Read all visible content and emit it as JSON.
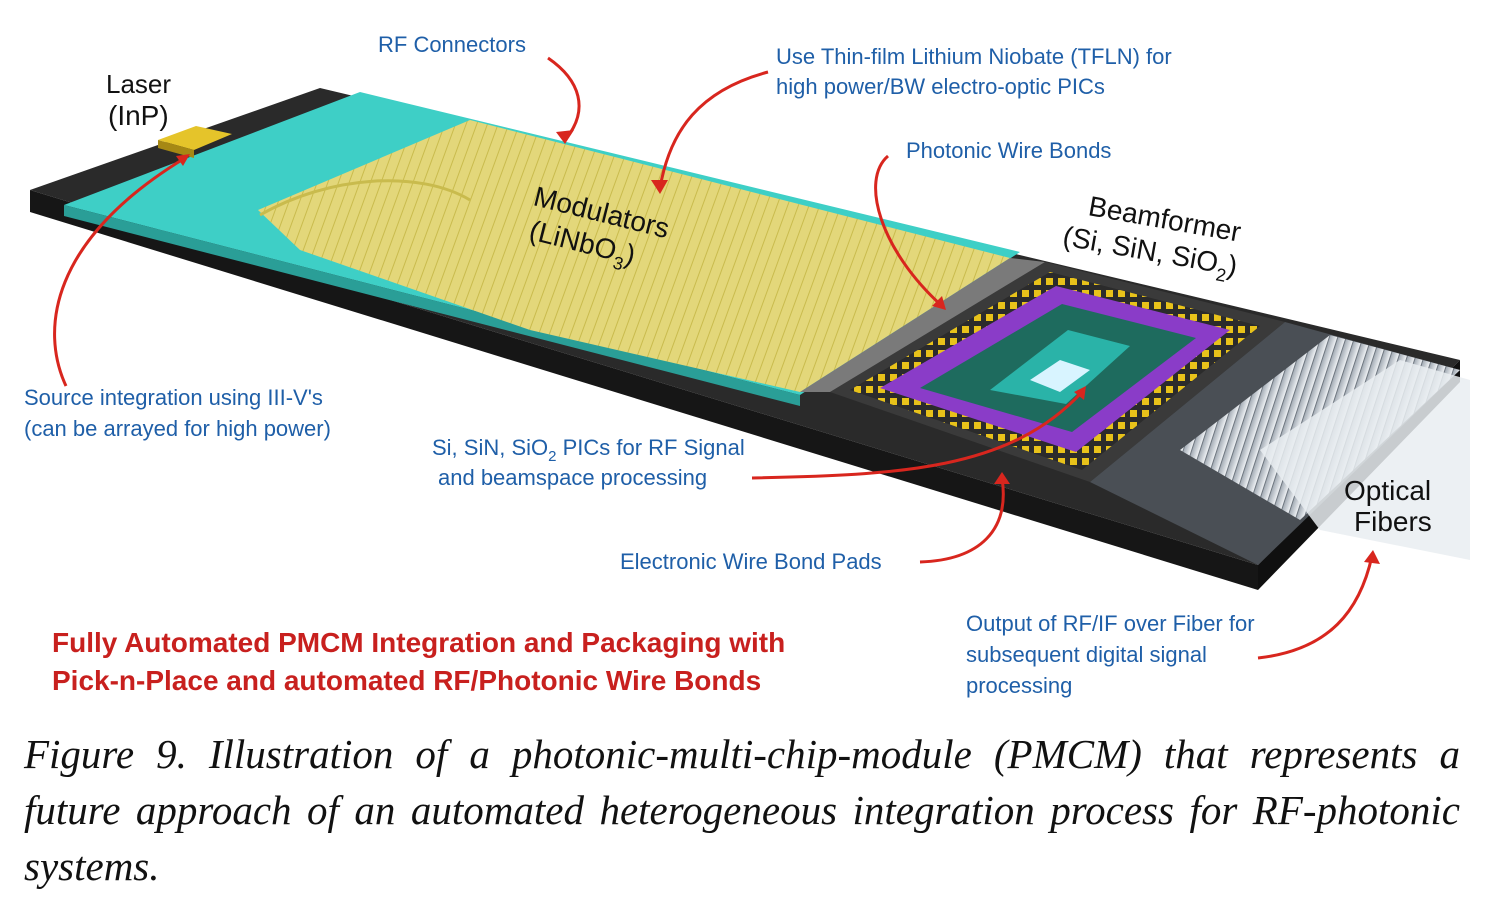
{
  "labels": {
    "laser": "Laser",
    "laser_material": "InP",
    "rf_connectors": "RF Connectors",
    "tfln_line1": "Use Thin-film Lithium Niobate (TFLN) for",
    "tfln_line2": "high power/BW electro-optic PICs",
    "photonic_wire_bonds": "Photonic Wire Bonds",
    "modulators": "Modulators",
    "modulators_material": "LiNbO",
    "modulators_material_sub": "3",
    "beamformer": "Beamformer",
    "beamformer_material": "Si, SiN, SiO",
    "beamformer_material_sub": "2",
    "source_line1": "Source integration using III-V's",
    "source_line2": "(can be arrayed for high power)",
    "pics_line1_pre": "Si, SiN, SiO",
    "pics_line1_sub": "2",
    "pics_line1_post": " PICs for RF Signal",
    "pics_line2": "and beamspace processing",
    "wire_bond_pads": "Electronic Wire Bond Pads",
    "optical_fibers_line1": "Optical",
    "optical_fibers_line2": "Fibers",
    "output_line1": "Output of RF/IF over Fiber for",
    "output_line2": "subsequent digital signal",
    "output_line3": "processing"
  },
  "banner": {
    "line1": "Fully Automated PMCM Integration and Packaging with",
    "line2": "Pick-n-Place and automated RF/Photonic Wire Bonds"
  },
  "caption": "Figure 9. Illustration of a photonic-multi-chip-module (PMCM) that represents a future approach of an automated heterogeneous integration process for RF-photonic systems.",
  "colors": {
    "label_blue": "#1f5fa8",
    "accent_red": "#d21f1f",
    "substrate": "#2a2a2a",
    "interposer_teal": "#3ecfc6",
    "modulator_yellow": "#e3d77a",
    "beamformer_purple": "#8a3cc8",
    "pad_gold": "#e8c21a"
  }
}
